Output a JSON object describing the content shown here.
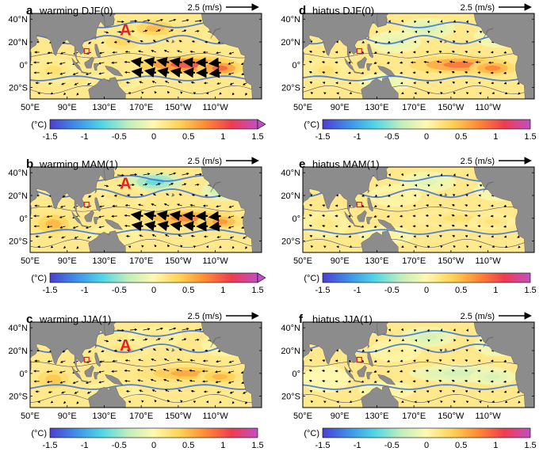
{
  "figure": {
    "colorbar": {
      "unit_label": "(°C)",
      "min": -1.5,
      "max": 1.5,
      "ticks": [
        "-1.5",
        "-1",
        "-0.5",
        "0",
        "0.5",
        "1",
        "1.5"
      ],
      "tick_values": [
        -1.5,
        -1,
        -0.5,
        0,
        0.5,
        1,
        1.5
      ],
      "colors": [
        "#4b3fd1",
        "#3f8fe8",
        "#4fd6e6",
        "#bfeebd",
        "#fff9b0",
        "#ffd255",
        "#ff8a35",
        "#ee3c50",
        "#c24fc4"
      ]
    },
    "map": {
      "lon_range": [
        50,
        300
      ],
      "lat_range": [
        -30,
        45
      ],
      "x_ticks": [
        {
          "label": "50°E",
          "lon": 50
        },
        {
          "label": "90°E",
          "lon": 90
        },
        {
          "label": "130°E",
          "lon": 130
        },
        {
          "label": "170°E",
          "lon": 170
        },
        {
          "label": "150°W",
          "lon": 210
        },
        {
          "label": "110°W",
          "lon": 250
        }
      ],
      "y_ticks": [
        {
          "label": "40°N",
          "lat": 40
        },
        {
          "label": "20°N",
          "lat": 20
        },
        {
          "label": "0°",
          "lat": 0
        },
        {
          "label": "20°S",
          "lat": -20
        }
      ],
      "colors": {
        "land": "#8c8c8c",
        "contour": "#3a6fd8",
        "box": "#e0191e",
        "annotation": "#e82222"
      }
    },
    "reference_arrow_label": "2.5 (m/s)",
    "panels": [
      {
        "letter": "a",
        "title": "warming  DJF(0)",
        "annotation": "A",
        "extended_colorbar": true,
        "sst_anomaly": {
          "west_pacific": 0.4,
          "north_pacific": 0.6,
          "east_equatorial_pacific": 1.2,
          "indian_ocean": 0.3
        }
      },
      {
        "letter": "b",
        "title": "warming  MAM(1)",
        "annotation": "A",
        "extended_colorbar": true,
        "sst_anomaly": {
          "west_pacific": 0.3,
          "north_pacific": -0.8,
          "east_equatorial_pacific": 0.9,
          "indian_ocean": 0.6
        }
      },
      {
        "letter": "c",
        "title": "warming  JJA(1)",
        "annotation": "A",
        "extended_colorbar": false,
        "sst_anomaly": {
          "west_pacific": 0.3,
          "north_pacific": 0.2,
          "east_equatorial_pacific": 0.7,
          "indian_ocean": 0.5
        }
      },
      {
        "letter": "d",
        "title": "hiatus  DJF(0)",
        "annotation": "",
        "extended_colorbar": false,
        "sst_anomaly": {
          "west_pacific": -0.2,
          "north_pacific": -0.3,
          "east_equatorial_pacific": 1.0,
          "indian_ocean": 0.3
        }
      },
      {
        "letter": "e",
        "title": "hiatus  MAM(1)",
        "annotation": "",
        "extended_colorbar": false,
        "sst_anomaly": {
          "west_pacific": 0.1,
          "north_pacific": -0.2,
          "east_equatorial_pacific": 0.3,
          "indian_ocean": 0.2
        }
      },
      {
        "letter": "f",
        "title": "hiatus  JJA(1)",
        "annotation": "",
        "extended_colorbar": false,
        "sst_anomaly": {
          "west_pacific": 0.1,
          "north_pacific": -0.3,
          "east_equatorial_pacific": -0.3,
          "indian_ocean": 0.0
        }
      }
    ]
  }
}
